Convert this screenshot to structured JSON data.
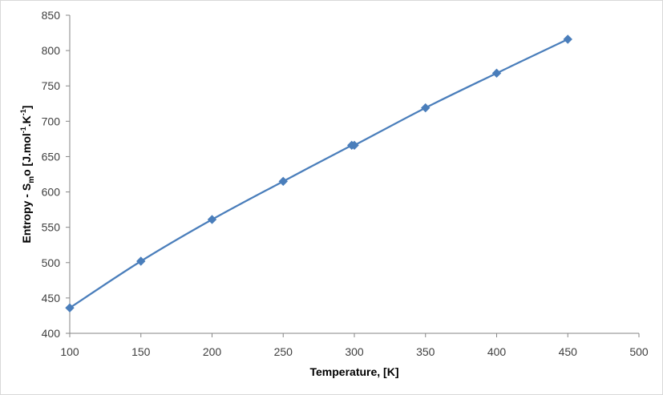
{
  "chart_data": {
    "type": "scatter",
    "title": "",
    "xlabel": "Temperature, [K]",
    "ylabel_parts": {
      "prefix": "Entropy - S",
      "sub": "m",
      "after_sub": "o [J.mol",
      "sup1": "-1",
      "middle": ".K",
      "sup2": "-1",
      "suffix": "]"
    },
    "xlim": [
      100,
      500
    ],
    "ylim": [
      400,
      850
    ],
    "xticks": [
      100,
      150,
      200,
      250,
      300,
      350,
      400,
      450,
      500
    ],
    "yticks": [
      400,
      450,
      500,
      550,
      600,
      650,
      700,
      750,
      800,
      850
    ],
    "grid": false,
    "legend": "none",
    "marker": "diamond",
    "line": "smooth",
    "series": [
      {
        "color": "#4a7ebb",
        "x": [
          100,
          150,
          200,
          250,
          298.15,
          300,
          350,
          400,
          450
        ],
        "y": [
          436,
          502,
          561,
          615,
          666,
          666,
          719,
          768,
          816
        ]
      }
    ]
  }
}
